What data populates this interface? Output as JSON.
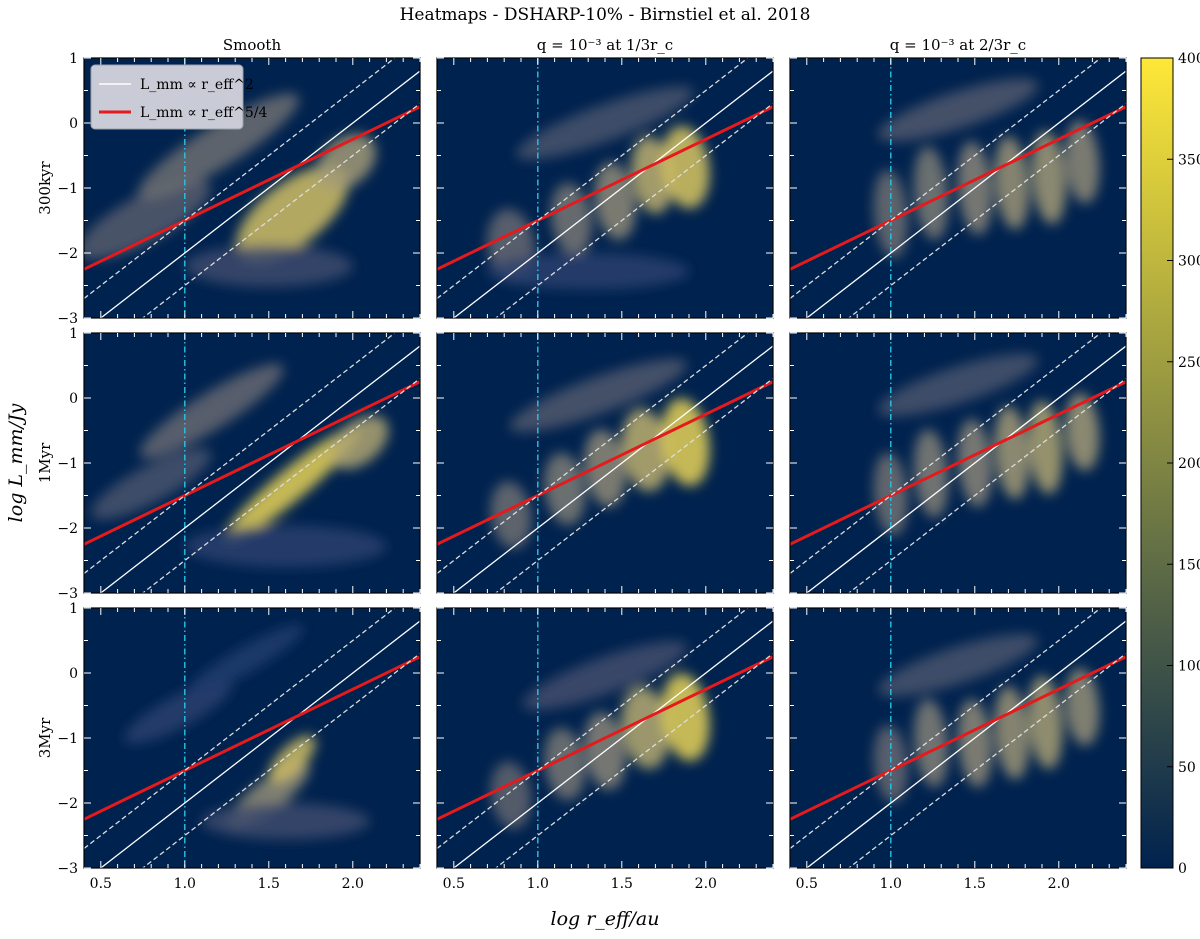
{
  "chart_data": {
    "type": "heatmap",
    "title": "Heatmaps - DSHARP-10% - Birnstiel et al. 2018",
    "xlabel": "log r_eff/au",
    "ylabel": "log L_mm/Jy",
    "xlim": [
      0.4,
      2.4
    ],
    "ylim": [
      -3,
      1
    ],
    "x_ticks": [
      "0.5",
      "1.0",
      "1.5",
      "2.0"
    ],
    "y_ticks": [
      "1",
      "0",
      "−1",
      "−2",
      "−3"
    ],
    "columns": [
      "Smooth",
      "q = 10⁻³ at 1/3r_c",
      "q = 10⁻³ at 2/3r_c"
    ],
    "rows": [
      "300kyr",
      "1Myr",
      "3Myr"
    ],
    "colorbar": {
      "min": 0,
      "max": 400,
      "ticks": [
        "0",
        "50",
        "100",
        "150",
        "200",
        "250",
        "300",
        "350",
        "400"
      ],
      "colors": [
        "#00224e",
        "#123570",
        "#3b496c",
        "#575d6d",
        "#707173",
        "#8a8678",
        "#a69d75",
        "#c4b56c",
        "#e4cf5b",
        "#fee838"
      ]
    },
    "vertical_line_x": 1.0,
    "lines": [
      {
        "name": "L_mm ∝ r_eff^2",
        "slope": 2,
        "intercept": -4.0,
        "color": "#ffffff"
      },
      {
        "name": "L_mm ∝ r_eff^5/4",
        "slope": 1.25,
        "intercept": -2.75,
        "color": "#e41a1c"
      },
      {
        "name": "dashed_upper",
        "slope": 2,
        "intercept": -3.5,
        "color": "#dddddd"
      },
      {
        "name": "dashed_lower",
        "slope": 2,
        "intercept": -4.5,
        "color": "#dddddd"
      }
    ],
    "legend": {
      "placement": "upper-left",
      "entries": [
        "L_mm ∝ r_eff^2",
        "L_mm ∝ r_eff^5/4"
      ]
    }
  }
}
